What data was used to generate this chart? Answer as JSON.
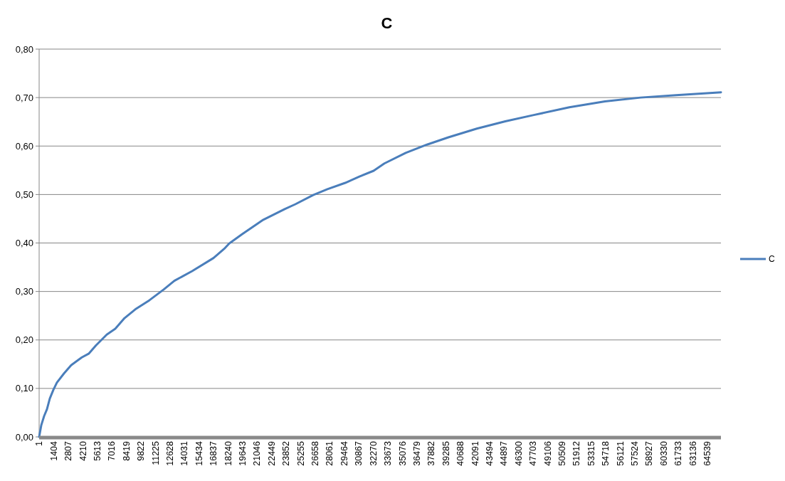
{
  "chart_data": {
    "type": "line",
    "title": "C",
    "legend": "right",
    "grid": "y",
    "marker": "none",
    "line_style": "solid",
    "xlim": [
      1,
      65870
    ],
    "xticks": [
      1,
      1404,
      2807,
      4210,
      5613,
      7016,
      8419,
      9822,
      11225,
      12628,
      14031,
      15434,
      16837,
      18240,
      19643,
      21046,
      22449,
      23852,
      25255,
      26658,
      28061,
      29464,
      30867,
      32270,
      33673,
      35076,
      36479,
      37882,
      39285,
      40688,
      42091,
      43494,
      44897,
      46300,
      47703,
      49106,
      50509,
      51912,
      53315,
      54718,
      56121,
      57524,
      58927,
      60330,
      61733,
      63136,
      64539
    ],
    "ylim": [
      0,
      0.8
    ],
    "yticks": [
      {
        "value": 0,
        "label": "0,00"
      },
      {
        "value": 0.1,
        "label": "0,10"
      },
      {
        "value": 0.2,
        "label": "0,20"
      },
      {
        "value": 0.3,
        "label": "0,30"
      },
      {
        "value": 0.4,
        "label": "0,40"
      },
      {
        "value": 0.5,
        "label": "0,50"
      },
      {
        "value": 0.6,
        "label": "0,60"
      },
      {
        "value": 0.7,
        "label": "0,70"
      },
      {
        "value": 0.8,
        "label": "0,80"
      }
    ],
    "series": [
      {
        "name": "C",
        "color": "#4a7ebb",
        "x": [
          1,
          206,
          481,
          756,
          1031,
          1375,
          1719,
          2406,
          3094,
          4125,
          4813,
          5500,
          6532,
          7357,
          8251,
          9283,
          10658,
          12033,
          13064,
          14783,
          16846,
          17878,
          18359,
          19597,
          21660,
          23722,
          24754,
          26473,
          27848,
          29567,
          30942,
          32317,
          33349,
          35412,
          37474,
          39537,
          42287,
          45038,
          47788,
          51226,
          54664,
          58102,
          61540,
          65870
        ],
        "values": [
          0,
          0.024,
          0.043,
          0.057,
          0.079,
          0.097,
          0.112,
          0.131,
          0.148,
          0.164,
          0.172,
          0.189,
          0.211,
          0.223,
          0.245,
          0.263,
          0.282,
          0.304,
          0.322,
          0.342,
          0.369,
          0.388,
          0.399,
          0.418,
          0.448,
          0.47,
          0.48,
          0.499,
          0.511,
          0.524,
          0.537,
          0.549,
          0.564,
          0.586,
          0.603,
          0.618,
          0.636,
          0.651,
          0.664,
          0.68,
          0.692,
          0.7,
          0.705,
          0.711
        ]
      }
    ]
  }
}
